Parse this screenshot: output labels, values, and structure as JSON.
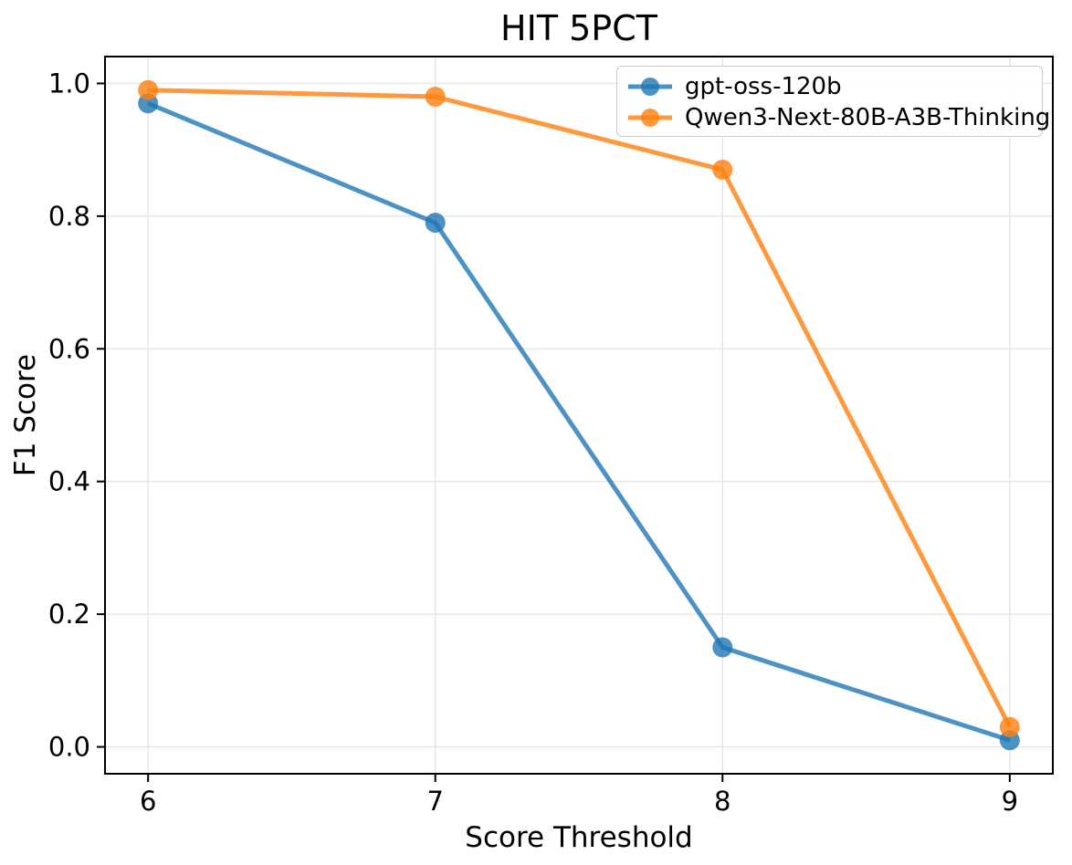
{
  "chart_data": {
    "type": "line",
    "title": "HIT 5PCT",
    "xlabel": "Score Threshold",
    "ylabel": "F1 Score",
    "x": [
      6,
      7,
      8,
      9
    ],
    "series": [
      {
        "name": "gpt-oss-120b",
        "color": "#1f77b4",
        "values": [
          0.97,
          0.79,
          0.15,
          0.01
        ]
      },
      {
        "name": "Qwen3-Next-80B-A3B-Thinking",
        "color": "#ff7f0e",
        "values": [
          0.99,
          0.98,
          0.87,
          0.03
        ]
      }
    ],
    "alpha": 0.8,
    "marker": "o",
    "x_ticks": [
      6,
      7,
      8,
      9
    ],
    "x_tick_labels": [
      "6",
      "7",
      "8",
      "9"
    ],
    "y_ticks": [
      0.0,
      0.2,
      0.4,
      0.6,
      0.8,
      1.0
    ],
    "y_tick_labels": [
      "0.0",
      "0.2",
      "0.4",
      "0.6",
      "0.8",
      "1.0"
    ],
    "xlim": [
      5.85,
      9.15
    ],
    "ylim": [
      -0.0405,
      1.0405
    ],
    "grid": true,
    "grid_color": "#e6e6e6",
    "axis_color": "#000000",
    "background": "#ffffff",
    "legend_position": "upper right"
  }
}
